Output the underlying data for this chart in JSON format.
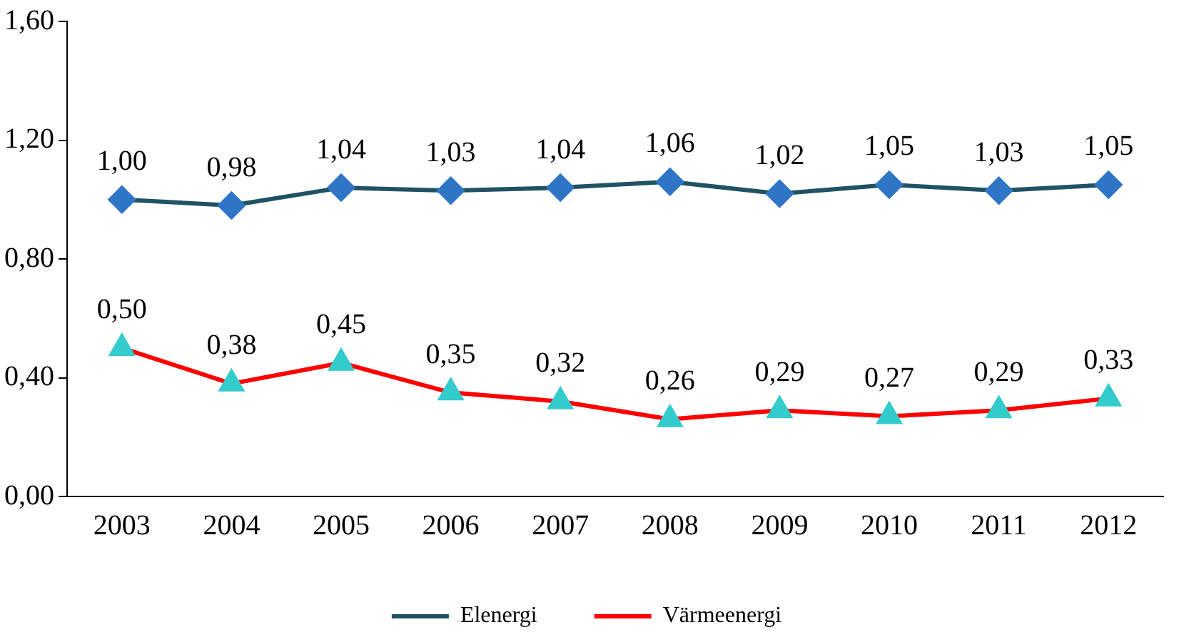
{
  "chart_data": {
    "type": "line",
    "categories": [
      "2003",
      "2004",
      "2005",
      "2006",
      "2007",
      "2008",
      "2009",
      "2010",
      "2011",
      "2012"
    ],
    "series": [
      {
        "name": "Elenergi",
        "color": "#1f5263",
        "colors": [
          "#2e75c6",
          "#2e75c6",
          "#2e75c6",
          "#2e75c6",
          "#2e75c6",
          "#2e75c6",
          "#2e75c6",
          "#2e75c6",
          "#2e75c6",
          "#2e75c6"
        ],
        "marker": "diamond",
        "values": [
          1.0,
          0.98,
          1.04,
          1.03,
          1.04,
          1.06,
          1.02,
          1.05,
          1.03,
          1.05
        ],
        "value_labels": [
          "1,00",
          "0,98",
          "1,04",
          "1,03",
          "1,04",
          "1,06",
          "1,02",
          "1,05",
          "1,03",
          "1,05"
        ]
      },
      {
        "name": "Värmeenergi",
        "color": "#ff0000",
        "colors": [
          "#33cccc",
          "#33cccc",
          "#33cccc",
          "#33cccc",
          "#33cccc",
          "#33cccc",
          "#33cccc",
          "#33cccc",
          "#33cccc",
          "#33cccc"
        ],
        "marker": "triangle",
        "values": [
          0.5,
          0.38,
          0.45,
          0.35,
          0.32,
          0.26,
          0.29,
          0.27,
          0.29,
          0.33
        ],
        "value_labels": [
          "0,50",
          "0,38",
          "0,45",
          "0,35",
          "0,32",
          "0,26",
          "0,29",
          "0,27",
          "0,29",
          "0,33"
        ]
      }
    ],
    "ylim": [
      0,
      1.6
    ],
    "yticks": [
      {
        "value": 0,
        "label": "0,00"
      },
      {
        "value": 0.4,
        "label": "0,40"
      },
      {
        "value": 0.8,
        "label": "0,80"
      },
      {
        "value": 1.2,
        "label": "1,20"
      },
      {
        "value": 1.6,
        "label": "1,60"
      }
    ],
    "grid": false,
    "legend": "bottom"
  }
}
